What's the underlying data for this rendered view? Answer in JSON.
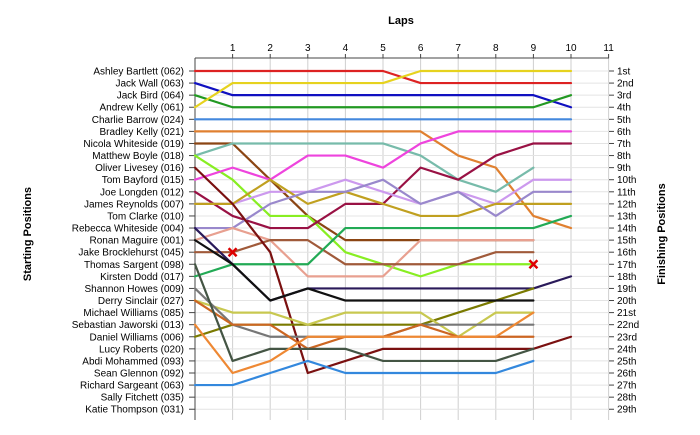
{
  "chart_data": {
    "type": "line",
    "title": "Laps",
    "ylabel_left": "Starting Positions",
    "ylabel_right": "Finishing Positions",
    "laps": [
      1,
      2,
      3,
      4,
      5,
      6,
      7,
      8,
      9,
      10,
      11
    ],
    "starting_positions": [
      "Ashley Bartlett (062)",
      "Jack Wall (063)",
      "Jack Bird (064)",
      "Andrew Kelly (061)",
      "Charlie Barrow (024)",
      "Bradley Kelly (021)",
      "Nicola Whiteside (019)",
      "Matthew Boyle (018)",
      "Oliver Livesey (016)",
      "Tom Bayford (015)",
      "Joe Longden (012)",
      "James Reynolds (007)",
      "Tom Clarke (010)",
      "Rebecca Whiteside (004)",
      "Ronan Maguire (001)",
      "Jake Brocklehurst (045)",
      "Thomas Sargent (098)",
      "Kirsten Dodd (017)",
      "Shannon Howes (009)",
      "Derry Sinclair (027)",
      "Michael Williams (085)",
      "Sebastian Jaworski (013)",
      "Daniel Williams (006)",
      "Lucy Roberts (020)",
      "Abdi Mohammed (093)",
      "Sean Glennon (092)",
      "Richard Sargeant (063)",
      "Sally Fitchett (035)",
      "Katie Thompson (031)"
    ],
    "finishing_positions": [
      "1st",
      "2nd",
      "3rd",
      "4th",
      "5th",
      "6th",
      "7th",
      "8th",
      "9th",
      "10th",
      "11th",
      "12th",
      "13th",
      "14th",
      "15th",
      "16th",
      "17th",
      "18th",
      "19th",
      "20th",
      "21st",
      "22nd",
      "23rd",
      "24th",
      "25th",
      "26th",
      "27th",
      "28th",
      "29th"
    ],
    "series": [
      {
        "color": "#dd2222",
        "positions": [
          1,
          1,
          1,
          1,
          1,
          1,
          2,
          2,
          2,
          2,
          2
        ]
      },
      {
        "color": "#1010c0",
        "positions": [
          2,
          3,
          3,
          3,
          3,
          3,
          3,
          3,
          3,
          3,
          4
        ]
      },
      {
        "color": "#229922",
        "positions": [
          3,
          4,
          4,
          4,
          4,
          4,
          4,
          4,
          4,
          4,
          3
        ]
      },
      {
        "color": "#e6d21e",
        "positions": [
          4,
          2,
          2,
          2,
          2,
          2,
          1,
          1,
          1,
          1,
          1
        ]
      },
      {
        "color": "#4488dd",
        "positions": [
          5,
          5,
          5,
          5,
          5,
          5,
          5,
          5,
          5,
          5,
          5
        ]
      },
      {
        "color": "#e08030",
        "positions": [
          6,
          6,
          6,
          6,
          6,
          6,
          6,
          8,
          9,
          13,
          14
        ]
      },
      {
        "color": "#8b4513",
        "positions": [
          7,
          7,
          10,
          13,
          15,
          15,
          15,
          15,
          15,
          15
        ]
      },
      {
        "color": "#77bbaa",
        "positions": [
          8,
          7,
          7,
          7,
          7,
          7,
          8,
          10,
          11,
          9
        ]
      },
      {
        "color": "#88ee22",
        "positions": [
          8,
          10,
          13,
          13,
          16,
          17,
          18,
          17,
          17,
          17
        ]
      },
      {
        "color": "#ee44dd",
        "positions": [
          10,
          9,
          10,
          8,
          8,
          9,
          7,
          6,
          6,
          6,
          6
        ]
      },
      {
        "color": "#991144",
        "positions": [
          11,
          13,
          14,
          14,
          12,
          12,
          9,
          10,
          8,
          7,
          7
        ]
      },
      {
        "color": "#cc99ee",
        "positions": [
          12,
          12,
          11,
          11,
          10,
          11,
          12,
          11,
          12,
          10,
          10
        ]
      },
      {
        "color": "#c0a020",
        "positions": [
          12,
          12,
          10,
          12,
          11,
          12,
          13,
          13,
          12,
          12,
          12
        ]
      },
      {
        "color": "#9988cc",
        "positions": [
          14,
          14,
          12,
          11,
          11,
          10,
          12,
          11,
          13,
          11,
          11
        ]
      },
      {
        "color": "#e8a090",
        "positions": [
          15,
          14,
          15,
          18,
          18,
          18,
          15,
          15,
          15,
          15
        ]
      },
      {
        "color": "#a05a3a",
        "positions": [
          16,
          16,
          15,
          15,
          17,
          17,
          17,
          17,
          16,
          16
        ]
      },
      {
        "color": "#7a1010",
        "positions": [
          9,
          12,
          16,
          26,
          25,
          24,
          24,
          24,
          24,
          24,
          23
        ]
      },
      {
        "color": "#22aa55",
        "positions": [
          18,
          17,
          17,
          17,
          14,
          14,
          14,
          14,
          14,
          14,
          13
        ]
      },
      {
        "color": "#2a1a5a",
        "positions": [
          14,
          17,
          20,
          19,
          19,
          19,
          19,
          19,
          19,
          19,
          18
        ]
      },
      {
        "color": "#7a7a00",
        "positions": [
          23,
          22,
          22,
          22,
          22,
          22,
          22,
          21,
          20,
          19
        ]
      },
      {
        "color": "#111111",
        "positions": [
          15,
          17,
          20,
          19,
          20,
          20,
          20,
          20,
          20,
          20
        ]
      },
      {
        "color": "#c8c850",
        "positions": [
          20,
          21,
          21,
          22,
          21,
          21,
          21,
          23,
          21,
          21
        ]
      },
      {
        "color": "#777777",
        "positions": [
          19,
          22,
          23,
          23,
          23,
          23,
          22,
          22,
          22,
          22
        ]
      },
      {
        "color": "#cc6622",
        "positions": [
          20,
          22,
          22,
          24,
          23,
          23,
          22,
          23,
          23,
          23
        ]
      },
      {
        "color": "#445544",
        "positions": [
          17,
          25,
          24,
          24,
          24,
          25,
          25,
          25,
          25,
          24
        ]
      },
      {
        "color": "#ee8833",
        "positions": [
          22,
          26,
          25,
          23,
          23,
          23,
          23,
          23,
          23,
          21
        ]
      },
      {
        "color": "#3388dd",
        "positions": [
          27,
          27,
          26,
          25,
          26,
          26,
          26,
          26,
          26,
          25
        ]
      }
    ],
    "markers": [
      {
        "lap": 1,
        "position": 16,
        "symbol": "x",
        "color": "#dd0000"
      },
      {
        "lap": 9,
        "position": 17,
        "symbol": "x",
        "color": "#dd0000"
      }
    ],
    "grid": true
  }
}
